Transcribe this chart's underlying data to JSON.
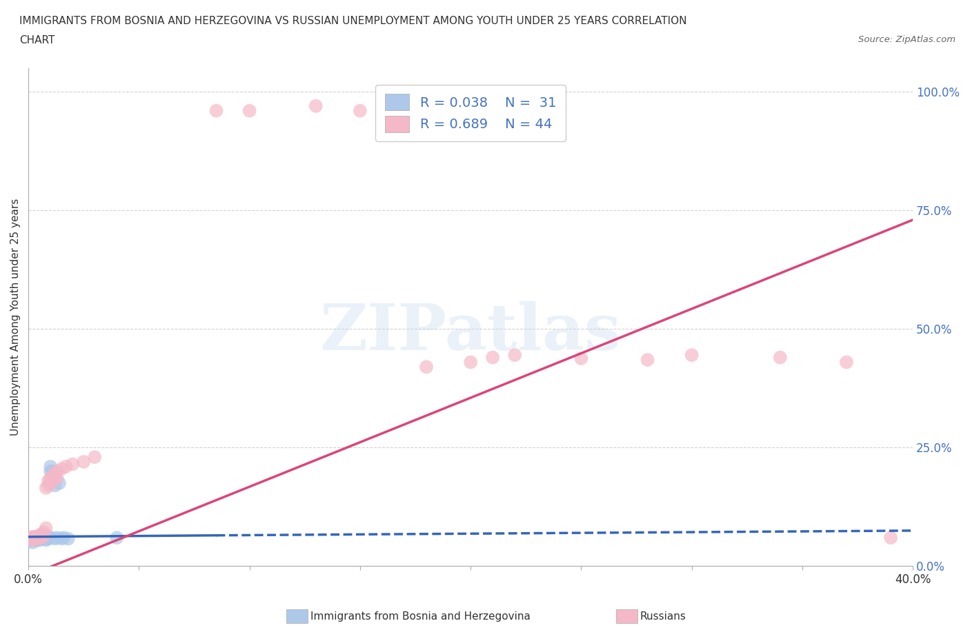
{
  "title_line1": "IMMIGRANTS FROM BOSNIA AND HERZEGOVINA VS RUSSIAN UNEMPLOYMENT AMONG YOUTH UNDER 25 YEARS CORRELATION",
  "title_line2": "CHART",
  "source": "Source: ZipAtlas.com",
  "ylabel": "Unemployment Among Youth under 25 years",
  "xlim": [
    0.0,
    0.4
  ],
  "ylim": [
    0.0,
    1.05
  ],
  "yticks": [
    0.0,
    0.25,
    0.5,
    0.75,
    1.0
  ],
  "yticklabels": [
    "0.0%",
    "25.0%",
    "50.0%",
    "75.0%",
    "100.0%"
  ],
  "watermark": "ZIPatlas",
  "legend_R1": "R = 0.038",
  "legend_N1": "N =  31",
  "legend_R2": "R = 0.689",
  "legend_N2": "N = 44",
  "blue_color": "#adc8e8",
  "pink_color": "#f4b8c8",
  "blue_line_color": "#3366bb",
  "pink_line_color": "#dd4477",
  "blue_scatter": [
    [
      0.001,
      0.055
    ],
    [
      0.002,
      0.06
    ],
    [
      0.002,
      0.05
    ],
    [
      0.003,
      0.058
    ],
    [
      0.003,
      0.062
    ],
    [
      0.004,
      0.055
    ],
    [
      0.004,
      0.06
    ],
    [
      0.005,
      0.055
    ],
    [
      0.005,
      0.058
    ],
    [
      0.005,
      0.06
    ],
    [
      0.006,
      0.058
    ],
    [
      0.006,
      0.062
    ],
    [
      0.006,
      0.065
    ],
    [
      0.007,
      0.058
    ],
    [
      0.007,
      0.06
    ],
    [
      0.008,
      0.055
    ],
    [
      0.008,
      0.06
    ],
    [
      0.009,
      0.058
    ],
    [
      0.009,
      0.062
    ],
    [
      0.01,
      0.06
    ],
    [
      0.01,
      0.2
    ],
    [
      0.01,
      0.21
    ],
    [
      0.011,
      0.2
    ],
    [
      0.012,
      0.17
    ],
    [
      0.012,
      0.058
    ],
    [
      0.013,
      0.06
    ],
    [
      0.014,
      0.175
    ],
    [
      0.015,
      0.058
    ],
    [
      0.016,
      0.06
    ],
    [
      0.018,
      0.058
    ],
    [
      0.04,
      0.06
    ]
  ],
  "pink_scatter": [
    [
      0.001,
      0.06
    ],
    [
      0.001,
      0.058
    ],
    [
      0.002,
      0.062
    ],
    [
      0.002,
      0.055
    ],
    [
      0.003,
      0.06
    ],
    [
      0.003,
      0.058
    ],
    [
      0.004,
      0.062
    ],
    [
      0.004,
      0.058
    ],
    [
      0.005,
      0.065
    ],
    [
      0.005,
      0.06
    ],
    [
      0.006,
      0.068
    ],
    [
      0.006,
      0.06
    ],
    [
      0.007,
      0.072
    ],
    [
      0.007,
      0.065
    ],
    [
      0.008,
      0.08
    ],
    [
      0.008,
      0.165
    ],
    [
      0.009,
      0.17
    ],
    [
      0.009,
      0.18
    ],
    [
      0.01,
      0.175
    ],
    [
      0.01,
      0.185
    ],
    [
      0.011,
      0.19
    ],
    [
      0.011,
      0.18
    ],
    [
      0.012,
      0.195
    ],
    [
      0.013,
      0.185
    ],
    [
      0.013,
      0.2
    ],
    [
      0.015,
      0.205
    ],
    [
      0.017,
      0.21
    ],
    [
      0.02,
      0.215
    ],
    [
      0.025,
      0.22
    ],
    [
      0.03,
      0.23
    ],
    [
      0.085,
      0.96
    ],
    [
      0.1,
      0.96
    ],
    [
      0.13,
      0.97
    ],
    [
      0.15,
      0.96
    ],
    [
      0.18,
      0.42
    ],
    [
      0.2,
      0.43
    ],
    [
      0.21,
      0.44
    ],
    [
      0.22,
      0.445
    ],
    [
      0.25,
      0.438
    ],
    [
      0.28,
      0.435
    ],
    [
      0.3,
      0.445
    ],
    [
      0.34,
      0.44
    ],
    [
      0.37,
      0.43
    ],
    [
      0.39,
      0.06
    ]
  ],
  "blue_trendline_solid": [
    [
      0.0,
      0.062
    ],
    [
      0.085,
      0.065
    ]
  ],
  "blue_trendline_dashed": [
    [
      0.085,
      0.065
    ],
    [
      0.4,
      0.075
    ]
  ],
  "pink_trendline": [
    [
      0.0,
      -0.02
    ],
    [
      0.4,
      0.73
    ]
  ],
  "grid_color": "#cccccc",
  "bg_color": "#ffffff"
}
